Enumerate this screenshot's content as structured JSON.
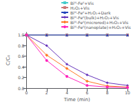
{
  "chart_data": {
    "type": "line",
    "x": [
      0,
      2,
      4,
      6,
      8,
      10
    ],
    "series": [
      {
        "name": "Biᴵᴵᴵ-Feᴵᴵ+Vis",
        "color": "#44CCCC",
        "marker": "square",
        "line_style": "solid",
        "values": [
          1.0,
          1.0,
          1.0,
          1.0,
          1.0,
          1.0
        ]
      },
      {
        "name": "H₂O₂+Vis",
        "color": "#CC7777",
        "marker": "square",
        "line_style": "solid",
        "values": [
          1.0,
          1.0,
          1.0,
          1.0,
          1.0,
          1.0
        ]
      },
      {
        "name": "Biᴵᴵᴵ-Feᴵᴵ+H₂O₂+Dark",
        "color": "#2244BB",
        "marker": "triangle",
        "line_style": "solid",
        "values": [
          1.0,
          1.0,
          1.0,
          1.0,
          1.0,
          1.0
        ]
      },
      {
        "name": "Biᴵᴵᴵ-Feᴵᴵ(bulk)+H₂O₂+Vis",
        "color": "#6633BB",
        "marker": "diamond",
        "line_style": "solid",
        "values": [
          1.0,
          0.8,
          0.45,
          0.25,
          0.1,
          0.05
        ]
      },
      {
        "name": "Biᴵᴵᴵ-Feᴵᴵ(microrod)+H₂O₂+Vis",
        "color": "#FF7722",
        "marker": "plus",
        "line_style": "solid",
        "values": [
          1.0,
          0.62,
          0.37,
          0.13,
          0.04,
          0.02
        ]
      },
      {
        "name": "Biᴵᴵᴵ-Feᴵᴵ(nanoplate)+H₂O₂+Vis",
        "color": "#FF22BB",
        "marker": "circle",
        "line_style": "solid",
        "values": [
          1.0,
          0.52,
          0.22,
          0.05,
          0.02,
          0.01
        ]
      }
    ],
    "xlabel": "Time (min)",
    "ylabel": "C/C₀",
    "xlim": [
      0,
      10
    ],
    "ylim": [
      0,
      1.05
    ],
    "xticks": [
      0,
      2,
      4,
      6,
      8,
      10
    ],
    "yticks": [
      {
        "value": 0.0,
        "label": "0.0"
      },
      0.2,
      0.4,
      0.6,
      0.8,
      {
        "value": 1.0,
        "label": "1.0"
      }
    ],
    "grid": false,
    "legend": "upper right"
  }
}
